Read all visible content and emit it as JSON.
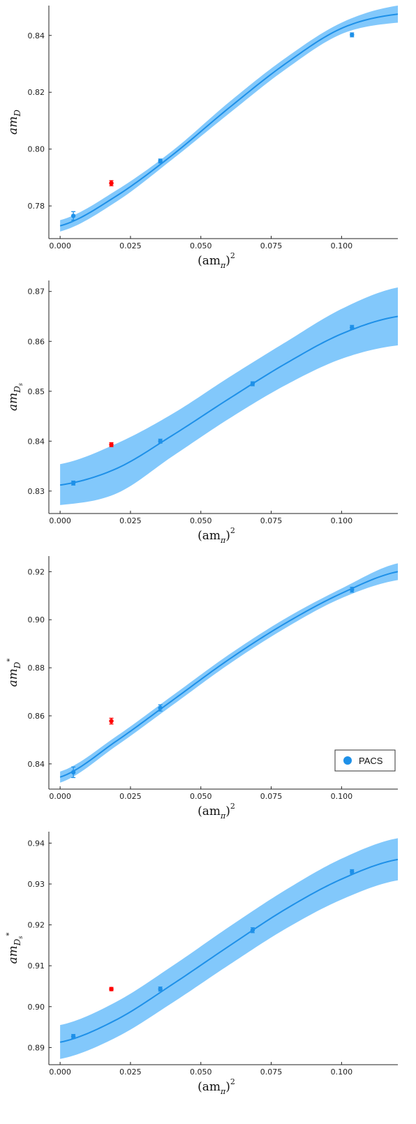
{
  "colors": {
    "fit": "#1e90e8",
    "band": "#82c8fb",
    "lattice": "#1e90e8",
    "physical": "#ff0000",
    "axis": "#222222"
  },
  "legend": {
    "label": "PACS"
  },
  "chart_data": [
    {
      "type": "scatter",
      "xlabel_main": "(am",
      "xlabel_sub": "π",
      "xlabel_sup": "2",
      "ylabel_main": "am",
      "ylabel_sub": "D",
      "ylabel_subsup": "",
      "xlim": [
        -0.004,
        0.12
      ],
      "ylim": [
        0.7685,
        0.8505
      ],
      "xticks": [
        0.0,
        0.025,
        0.05,
        0.075,
        0.1
      ],
      "xticklabels": [
        "0.000",
        "0.025",
        "0.050",
        "0.075",
        "0.100"
      ],
      "yticks": [
        0.78,
        0.8,
        0.82,
        0.84
      ],
      "yticklabels": [
        "0.78",
        "0.80",
        "0.82",
        "0.84"
      ],
      "fit": {
        "x": [
          0.0,
          0.02,
          0.04,
          0.06,
          0.08,
          0.1,
          0.12
        ],
        "y": [
          0.773,
          0.7835,
          0.798,
          0.8145,
          0.83,
          0.8425,
          0.8475
        ],
        "lo": [
          0.771,
          0.7815,
          0.7965,
          0.8125,
          0.828,
          0.8405,
          0.8445
        ],
        "hi": [
          0.775,
          0.7855,
          0.7995,
          0.8165,
          0.832,
          0.8445,
          0.8505
        ]
      },
      "lattice": {
        "x": [
          0.0047,
          0.0356,
          0.1037
        ],
        "y": [
          0.7765,
          0.7958,
          0.8402
        ],
        "err": [
          0.0015,
          0.0007,
          0.0007
        ]
      },
      "physical": {
        "x": [
          0.0182
        ],
        "y": [
          0.788
        ],
        "err": [
          0.0009
        ]
      },
      "legend": false
    },
    {
      "type": "scatter",
      "xlabel_main": "(am",
      "xlabel_sub": "π",
      "xlabel_sup": "2",
      "ylabel_main": "am",
      "ylabel_sub": "D",
      "ylabel_subsup": "s",
      "xlim": [
        -0.004,
        0.12
      ],
      "ylim": [
        0.8255,
        0.8722
      ],
      "xticks": [
        0.0,
        0.025,
        0.05,
        0.075,
        0.1
      ],
      "xticklabels": [
        "0.000",
        "0.025",
        "0.050",
        "0.075",
        "0.100"
      ],
      "yticks": [
        0.83,
        0.84,
        0.85,
        0.86,
        0.87
      ],
      "yticklabels": [
        "0.83",
        "0.84",
        "0.85",
        "0.86",
        "0.87"
      ],
      "fit": {
        "x": [
          0.0,
          0.02,
          0.04,
          0.06,
          0.08,
          0.1,
          0.12
        ],
        "y": [
          0.8312,
          0.8345,
          0.8412,
          0.8485,
          0.8555,
          0.8615,
          0.865
        ],
        "lo": [
          0.8272,
          0.8295,
          0.837,
          0.8445,
          0.8512,
          0.8565,
          0.8592
        ],
        "hi": [
          0.8354,
          0.8395,
          0.8455,
          0.8528,
          0.8598,
          0.8665,
          0.8708
        ]
      },
      "lattice": {
        "x": [
          0.0047,
          0.0356,
          0.0684,
          0.1037
        ],
        "y": [
          0.8316,
          0.84,
          0.8515,
          0.8628
        ],
        "err": [
          0.0004,
          0.0004,
          0.0004,
          0.0004
        ]
      },
      "physical": {
        "x": [
          0.0182
        ],
        "y": [
          0.8393
        ],
        "err": [
          0.0004
        ]
      },
      "legend": false
    },
    {
      "type": "scatter",
      "xlabel_main": "(am",
      "xlabel_sub": "π",
      "xlabel_sup": "2",
      "ylabel_main": "am",
      "ylabel_sub": "D",
      "ylabel_subsup": "*",
      "xlim": [
        -0.004,
        0.12
      ],
      "ylim": [
        0.8295,
        0.9265
      ],
      "xticks": [
        0.0,
        0.025,
        0.05,
        0.075,
        0.1
      ],
      "xticklabels": [
        "0.000",
        "0.025",
        "0.050",
        "0.075",
        "0.100"
      ],
      "yticks": [
        0.84,
        0.86,
        0.88,
        0.9,
        0.92
      ],
      "yticklabels": [
        "0.84",
        "0.86",
        "0.88",
        "0.90",
        "0.92"
      ],
      "fit": {
        "x": [
          0.0,
          0.02,
          0.04,
          0.06,
          0.08,
          0.1,
          0.12
        ],
        "y": [
          0.8345,
          0.8495,
          0.8665,
          0.8835,
          0.8985,
          0.911,
          0.92
        ],
        "lo": [
          0.8322,
          0.8475,
          0.8645,
          0.8815,
          0.8965,
          0.909,
          0.9165
        ],
        "hi": [
          0.8368,
          0.8515,
          0.8685,
          0.8855,
          0.9005,
          0.913,
          0.9235
        ]
      },
      "lattice": {
        "x": [
          0.0047,
          0.0356,
          0.1037
        ],
        "y": [
          0.8365,
          0.8633,
          0.9125
        ],
        "err": [
          0.0022,
          0.0013,
          0.001
        ]
      },
      "physical": {
        "x": [
          0.0182
        ],
        "y": [
          0.8578
        ],
        "err": [
          0.0012
        ]
      },
      "legend": true
    },
    {
      "type": "scatter",
      "xlabel_main": "(am",
      "xlabel_sub": "π",
      "xlabel_sup": "2",
      "ylabel_main": "am",
      "ylabel_sub": "D",
      "ylabel_subsup": "s*",
      "xlim": [
        -0.004,
        0.12
      ],
      "ylim": [
        0.8858,
        0.9428
      ],
      "xticks": [
        0.0,
        0.025,
        0.05,
        0.075,
        0.1
      ],
      "xticklabels": [
        "0.000",
        "0.025",
        "0.050",
        "0.075",
        "0.100"
      ],
      "yticks": [
        0.89,
        0.9,
        0.91,
        0.92,
        0.93,
        0.94
      ],
      "yticklabels": [
        "0.89",
        "0.90",
        "0.91",
        "0.92",
        "0.93",
        "0.94"
      ],
      "fit": {
        "x": [
          0.0,
          0.02,
          0.04,
          0.06,
          0.08,
          0.1,
          0.12
        ],
        "y": [
          0.8913,
          0.8968,
          0.9055,
          0.9148,
          0.9238,
          0.9312,
          0.936
        ],
        "lo": [
          0.8872,
          0.8925,
          0.901,
          0.9102,
          0.919,
          0.9262,
          0.9309
        ],
        "hi": [
          0.8955,
          0.9012,
          0.91,
          0.9195,
          0.9285,
          0.9362,
          0.9412
        ]
      },
      "lattice": {
        "x": [
          0.0047,
          0.0356,
          0.0684,
          0.1037
        ],
        "y": [
          0.8927,
          0.9043,
          0.9187,
          0.933
        ],
        "err": [
          0.0005,
          0.0005,
          0.0006,
          0.0005
        ]
      },
      "physical": {
        "x": [
          0.0182
        ],
        "y": [
          0.9043
        ],
        "err": [
          0.0004
        ]
      },
      "legend": false
    }
  ]
}
